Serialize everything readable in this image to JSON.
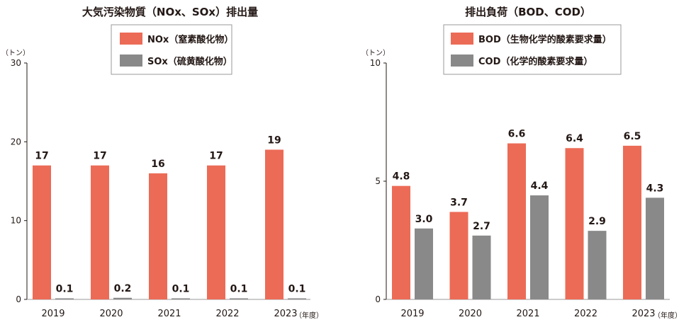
{
  "colors": {
    "series1": "#ec6b56",
    "series2": "#898989",
    "axis": "#231815"
  },
  "chart_data": [
    {
      "type": "bar",
      "title": "大気汚染物質（NOx、SOx）排出量",
      "unit": "（トン）",
      "x_unit": "（年度）",
      "categories": [
        "2019",
        "2020",
        "2021",
        "2022",
        "2023"
      ],
      "yticks": [
        "0",
        "10",
        "20",
        "30"
      ],
      "ylim": [
        0,
        30
      ],
      "series": [
        {
          "name": "NOx（窒素酸化物）",
          "values": [
            17,
            17,
            16,
            17,
            19
          ],
          "labels": [
            "17",
            "17",
            "16",
            "17",
            "19"
          ]
        },
        {
          "name": "SOx（硫黄酸化物）",
          "values": [
            0.1,
            0.2,
            0.1,
            0.1,
            0.1
          ],
          "labels": [
            "0.1",
            "0.2",
            "0.1",
            "0.1",
            "0.1"
          ]
        }
      ],
      "legend": "top-center"
    },
    {
      "type": "bar",
      "title": "排出負荷（BOD、COD）",
      "unit": "（トン）",
      "x_unit": "（年度）",
      "categories": [
        "2019",
        "2020",
        "2021",
        "2022",
        "2023"
      ],
      "yticks": [
        "0",
        "5",
        "10"
      ],
      "ylim": [
        0,
        10
      ],
      "series": [
        {
          "name": "BOD（生物化学的酸素要求量）",
          "values": [
            4.8,
            3.7,
            6.6,
            6.4,
            6.5
          ],
          "labels": [
            "4.8",
            "3.7",
            "6.6",
            "6.4",
            "6.5"
          ]
        },
        {
          "name": "COD（化学的酸素要求量）",
          "values": [
            3.0,
            2.7,
            4.4,
            2.9,
            4.3
          ],
          "labels": [
            "3.0",
            "2.7",
            "4.4",
            "2.9",
            "4.3"
          ]
        }
      ],
      "legend": "top-center"
    }
  ]
}
